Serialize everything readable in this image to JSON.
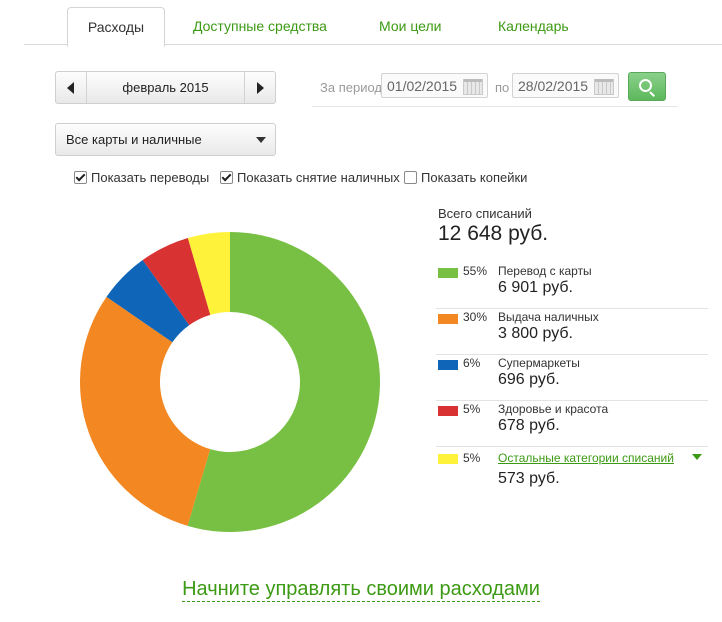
{
  "tabs": [
    {
      "label": "Расходы"
    },
    {
      "label": "Доступные средства"
    },
    {
      "label": "Мои цели"
    },
    {
      "label": "Календарь"
    }
  ],
  "month_selector": {
    "label": "февраль 2015"
  },
  "period": {
    "from_label": "За период",
    "from_value": "01/02/2015",
    "to_label": "по",
    "to_value": "28/02/2015"
  },
  "cards_filter": {
    "selected": "Все карты и наличные"
  },
  "checkboxes": [
    {
      "label": "Показать переводы",
      "checked": true
    },
    {
      "label": "Показать снятие наличных",
      "checked": true
    },
    {
      "label": "Показать копейки",
      "checked": false
    }
  ],
  "summary": {
    "total_label": "Всего списаний",
    "total_value": "12 648 руб."
  },
  "chart_data": {
    "type": "pie",
    "donut": true,
    "categories": [
      "Перевод с карты",
      "Выдача наличных",
      "Супермаркеты",
      "Здоровье и красота",
      "Остальные категории списаний"
    ],
    "values": [
      6901,
      3800,
      696,
      678,
      573
    ],
    "percent_labels": [
      "55%",
      "30%",
      "6%",
      "5%",
      "5%"
    ],
    "value_labels": [
      "6 901 руб.",
      "3 800 руб.",
      "696 руб.",
      "678 руб.",
      "573 руб."
    ],
    "colors": [
      "#78c043",
      "#f38721",
      "#0f65b7",
      "#d93233",
      "#fff23a"
    ]
  },
  "cta": {
    "label": "Начните управлять своими расходами"
  }
}
